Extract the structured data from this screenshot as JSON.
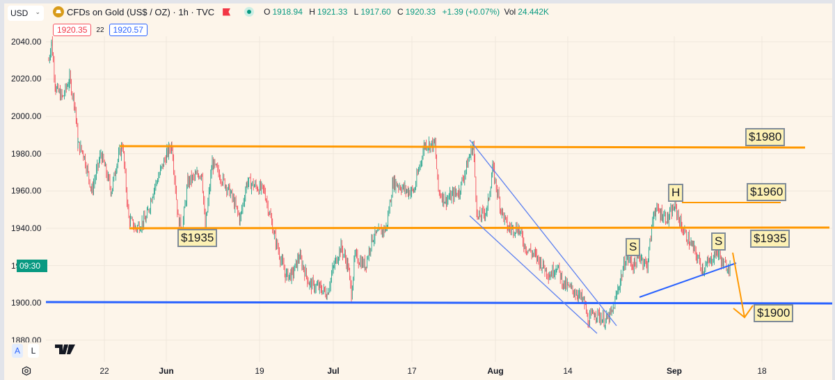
{
  "header": {
    "currency_select": "USD",
    "symbol_title": "CFDs on Gold (US$ / OZ) · 1h · TVC",
    "ohlc": {
      "open_label": "O",
      "open": "1918.94",
      "high_label": "H",
      "high": "1921.33",
      "low_label": "L",
      "low": "1917.60",
      "close_label": "C",
      "close": "1920.33",
      "change": "+1.39 (+0.07%)",
      "vol_label": "Vol",
      "vol": "24.442K"
    },
    "bid": "1920.35",
    "spread": "22",
    "ask": "1920.57"
  },
  "price_axis": {
    "labels": [
      "2040.00",
      "2020.00",
      "2000.00",
      "1980.00",
      "1960.00",
      "1940.00",
      "1900.00",
      "1880.00"
    ],
    "countdown": "09:30"
  },
  "time_axis": {
    "labels": [
      "22",
      "Jun",
      "19",
      "Jul",
      "17",
      "Aug",
      "14",
      "Sep",
      "18"
    ]
  },
  "controls": {
    "auto": "A",
    "log": "L"
  },
  "annotations": {
    "left_1935": "$1935",
    "r1980": "$1980",
    "r1960": "$1960",
    "r1935": "$1935",
    "r1900": "$1900",
    "head": "H",
    "shoulder_left": "S",
    "shoulder_right": "S"
  },
  "colors": {
    "up": "#089981",
    "down": "#f23645",
    "resistance": "#ff9800",
    "support": "#2962ff",
    "channel": "#5b7ff0",
    "background": "#fdf5ea"
  },
  "chart_data": {
    "type": "candlestick",
    "title": "CFDs on Gold (US$ / OZ) · 1h · TVC",
    "xlabel": "",
    "ylabel": "USD",
    "ylim": [
      1875,
      2045
    ],
    "x_ticks": [
      "22",
      "Jun",
      "19",
      "Jul",
      "17",
      "Aug",
      "14",
      "Sep",
      "18"
    ],
    "y_ticks": [
      2040,
      2020,
      2000,
      1980,
      1960,
      1940,
      1920,
      1900,
      1880
    ],
    "grid": true,
    "price_path": [
      [
        70,
        2030
      ],
      [
        74,
        2040
      ],
      [
        80,
        2015
      ],
      [
        90,
        2010
      ],
      [
        100,
        2020
      ],
      [
        108,
        2005
      ],
      [
        112,
        1985
      ],
      [
        120,
        1980
      ],
      [
        132,
        1960
      ],
      [
        145,
        1980
      ],
      [
        160,
        1960
      ],
      [
        168,
        1975
      ],
      [
        176,
        1985
      ],
      [
        185,
        1945
      ],
      [
        195,
        1940
      ],
      [
        210,
        1945
      ],
      [
        220,
        1960
      ],
      [
        240,
        1980
      ],
      [
        247,
        1985
      ],
      [
        256,
        1945
      ],
      [
        262,
        1940
      ],
      [
        270,
        1965
      ],
      [
        290,
        1970
      ],
      [
        295,
        1940
      ],
      [
        305,
        1975
      ],
      [
        330,
        1960
      ],
      [
        345,
        1945
      ],
      [
        355,
        1965
      ],
      [
        380,
        1960
      ],
      [
        395,
        1935
      ],
      [
        410,
        1915
      ],
      [
        420,
        1915
      ],
      [
        430,
        1925
      ],
      [
        445,
        1910
      ],
      [
        460,
        1908
      ],
      [
        470,
        1905
      ],
      [
        480,
        1920
      ],
      [
        490,
        1930
      ],
      [
        500,
        1920
      ],
      [
        505,
        1905
      ],
      [
        510,
        1925
      ],
      [
        525,
        1920
      ],
      [
        535,
        1935
      ],
      [
        555,
        1940
      ],
      [
        565,
        1965
      ],
      [
        585,
        1960
      ],
      [
        595,
        1960
      ],
      [
        610,
        1985
      ],
      [
        625,
        1985
      ],
      [
        630,
        1960
      ],
      [
        640,
        1955
      ],
      [
        660,
        1960
      ],
      [
        680,
        1985
      ],
      [
        686,
        1945
      ],
      [
        700,
        1950
      ],
      [
        708,
        1972
      ],
      [
        720,
        1950
      ],
      [
        730,
        1940
      ],
      [
        745,
        1940
      ],
      [
        755,
        1930
      ],
      [
        770,
        1925
      ],
      [
        790,
        1915
      ],
      [
        800,
        1920
      ],
      [
        810,
        1910
      ],
      [
        830,
        1905
      ],
      [
        840,
        1900
      ],
      [
        845,
        1890
      ],
      [
        855,
        1895
      ],
      [
        870,
        1890
      ],
      [
        880,
        1895
      ],
      [
        890,
        1910
      ],
      [
        900,
        1925
      ],
      [
        910,
        1920
      ],
      [
        920,
        1925
      ],
      [
        930,
        1920
      ],
      [
        940,
        1950
      ],
      [
        950,
        1948
      ],
      [
        960,
        1945
      ],
      [
        970,
        1952
      ],
      [
        980,
        1940
      ],
      [
        995,
        1930
      ],
      [
        1010,
        1918
      ],
      [
        1020,
        1922
      ],
      [
        1030,
        1928
      ],
      [
        1040,
        1920
      ],
      [
        1050,
        1920
      ]
    ],
    "last_price": 1920.33,
    "horizontal_levels": [
      {
        "price": 1983.5,
        "label": "$1980",
        "color": "#ff9800"
      },
      {
        "price": 1953.5,
        "label": "$1960",
        "color": "#ff9800"
      },
      {
        "price": 1940,
        "label": "$1935",
        "color": "#ff9800"
      },
      {
        "price": 1900.5,
        "label": "$1900",
        "color": "#2962ff"
      }
    ],
    "patterns": [
      "descending channel (Jul–Aug)",
      "head and shoulders (Aug–Sep) with rising neckline",
      "projected drop arrow to $1900"
    ]
  }
}
